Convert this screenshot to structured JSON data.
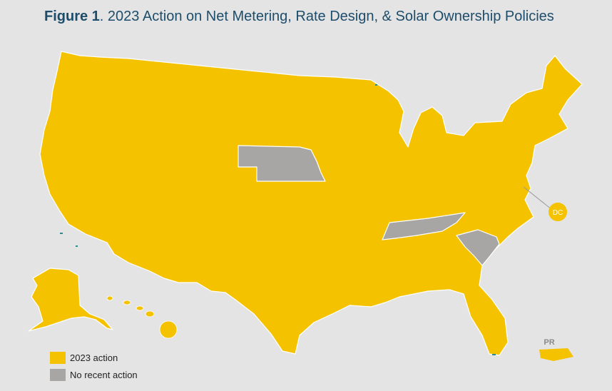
{
  "title": {
    "prefix": "Figure 1",
    "text": ". 2023 Action on Net Metering, Rate Design, & Solar Ownership Policies"
  },
  "colors": {
    "action": "#f5c200",
    "no_action": "#a7a6a4",
    "water": "#2e8a8c",
    "background": "#e4e4e4"
  },
  "labels": {
    "dc": "DC",
    "pr": "PR"
  },
  "legend": [
    {
      "label": "2023 action",
      "color": "#f5c200"
    },
    {
      "label": "No recent action",
      "color": "#a7a6a4"
    }
  ],
  "no_recent_action_states": [
    "Nebraska",
    "Tennessee",
    "South Carolina"
  ]
}
